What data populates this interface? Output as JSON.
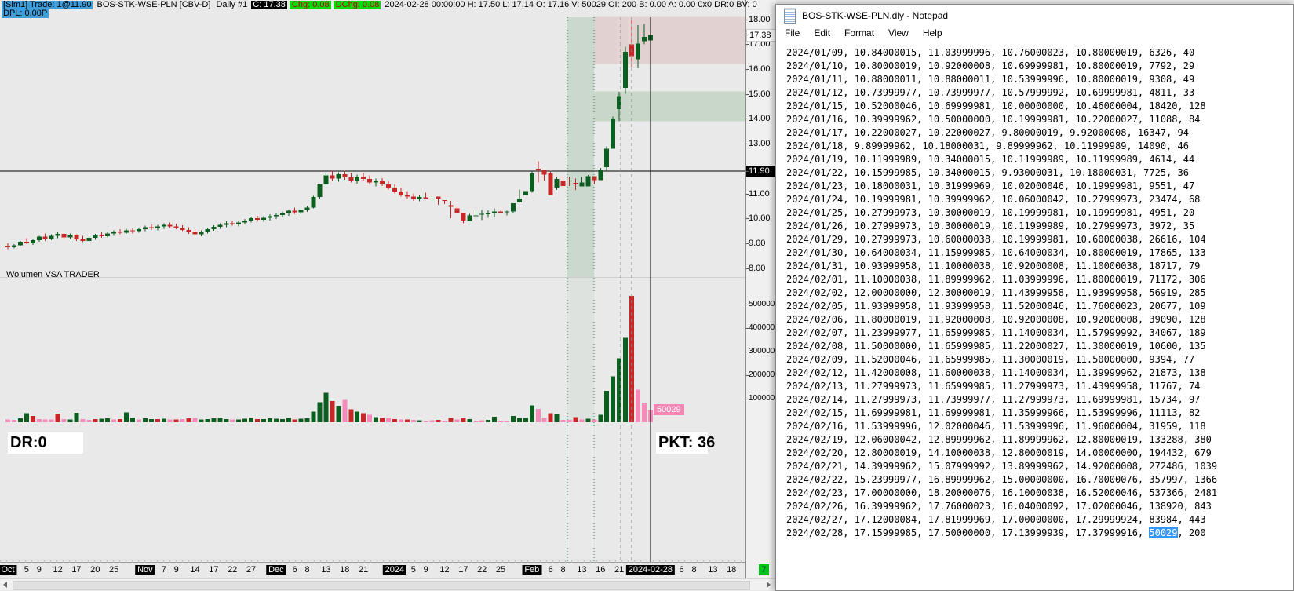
{
  "chart_window": {
    "header": {
      "sim_trade": "[Sim1]  Trade: 1@11.90",
      "symbol": "BOS-STK-WSE-PLN [CBV-D]",
      "period": "Daily #1",
      "close": "C: 17.38",
      "chg": "Chg: 0.08",
      "dchg": "DChg: 0.08",
      "info": "2024-02-28 00:00:00 H: 17.50 L: 17.14 O: 17.16 V: 50029 OI: 200 B: 0.00 A: 0.00 0x0 DR:0 BV: 0",
      "dpl": "DPL: 0.00P"
    },
    "study_label": "Wolumen VSA TRADER",
    "dr_label": "DR:0",
    "pkt_label": "PKT: 36",
    "volume_tag": "50029",
    "update_indicator": "7"
  },
  "notepad": {
    "title": "BOS-STK-WSE-PLN.dly - Notepad",
    "menu": [
      "File",
      "Edit",
      "Format",
      "View",
      "Help"
    ],
    "selection": {
      "line_index": 36,
      "text": "50029"
    },
    "lines": [
      "2024/01/09, 10.84000015, 11.03999996, 10.76000023, 10.80000019, 6326, 40",
      "2024/01/10, 10.80000019, 10.92000008, 10.69999981, 10.80000019, 7792, 29",
      "2024/01/11, 10.88000011, 10.88000011, 10.53999996, 10.80000019, 9308, 49",
      "2024/01/12, 10.73999977, 10.73999977, 10.57999992, 10.69999981, 4811, 33",
      "2024/01/15, 10.52000046, 10.69999981, 10.00000000, 10.46000004, 18420, 128",
      "2024/01/16, 10.39999962, 10.50000000, 10.19999981, 10.22000027, 11088, 84",
      "2024/01/17, 10.22000027, 10.22000027, 9.80000019, 9.92000008, 16347, 94",
      "2024/01/18, 9.89999962, 10.18000031, 9.89999962, 10.11999989, 14090, 46",
      "2024/01/19, 10.11999989, 10.34000015, 10.11999989, 10.11999989, 4614, 44",
      "2024/01/22, 10.15999985, 10.34000015, 9.93000031, 10.18000031, 7725, 36",
      "2024/01/23, 10.18000031, 10.31999969, 10.02000046, 10.19999981, 9551, 47",
      "2024/01/24, 10.19999981, 10.39999962, 10.06000042, 10.27999973, 23474, 68",
      "2024/01/25, 10.27999973, 10.30000019, 10.19999981, 10.19999981, 4951, 20",
      "2024/01/26, 10.27999973, 10.30000019, 10.11999989, 10.27999973, 3972, 35",
      "2024/01/29, 10.27999973, 10.60000038, 10.19999981, 10.60000038, 26616, 104",
      "2024/01/30, 10.64000034, 11.15999985, 10.64000034, 10.80000019, 17865, 133",
      "2024/01/31, 10.93999958, 11.10000038, 10.92000008, 11.10000038, 18717, 79",
      "2024/02/01, 11.10000038, 11.89999962, 11.03999996, 11.80000019, 71172, 306",
      "2024/02/02, 12.00000000, 12.30000019, 11.43999958, 11.93999958, 56919, 285",
      "2024/02/05, 11.93999958, 11.93999958, 11.52000046, 11.76000023, 20677, 109",
      "2024/02/06, 11.80000019, 11.92000008, 10.92000008, 10.92000008, 39090, 128",
      "2024/02/07, 11.23999977, 11.65999985, 11.14000034, 11.57999992, 34067, 189",
      "2024/02/08, 11.50000000, 11.65999985, 11.22000027, 11.30000019, 10600, 135",
      "2024/02/09, 11.52000046, 11.65999985, 11.30000019, 11.50000000, 9394, 77",
      "2024/02/12, 11.42000008, 11.60000038, 11.14000034, 11.39999962, 21873, 138",
      "2024/02/13, 11.27999973, 11.65999985, 11.27999973, 11.43999958, 11767, 74",
      "2024/02/14, 11.27999973, 11.73999977, 11.27999973, 11.69999981, 15734, 97",
      "2024/02/15, 11.69999981, 11.69999981, 11.35999966, 11.53999996, 11113, 82",
      "2024/02/16, 11.53999996, 12.02000046, 11.53999996, 11.96000004, 31959, 118",
      "2024/02/19, 12.06000042, 12.89999962, 11.89999962, 12.80000019, 133288, 380",
      "2024/02/20, 12.80000019, 14.10000038, 12.80000019, 14.00000000, 194432, 679",
      "2024/02/21, 14.39999962, 15.07999992, 13.89999962, 14.92000008, 272486, 1039",
      "2024/02/22, 15.23999977, 16.89999962, 15.00000000, 16.70000076, 357997, 1366",
      "2024/02/23, 17.00000000, 18.20000076, 16.10000038, 16.52000046, 537366, 2481",
      "2024/02/26, 16.39999962, 17.76000023, 16.04000092, 17.02000046, 138920, 843",
      "2024/02/27, 17.12000084, 17.81999969, 17.00000000, 17.29999924, 83984, 443",
      "2024/02/28, 17.15999985, 17.50000000, 17.13999939, 17.37999916, 50029, 200"
    ]
  },
  "chart_data": {
    "type": "candlestick+volume",
    "title": "BOS-STK-WSE-PLN [CBV-D] Daily",
    "last_price": "17.38",
    "entry_price": "11.90",
    "price_ticks": [
      18,
      17,
      16,
      15,
      14,
      13,
      11,
      10,
      9,
      8
    ],
    "volume_ticks": [
      500000,
      400000,
      300000,
      200000,
      100000
    ],
    "colors": {
      "up": "#0B5E20",
      "down": "#C62828",
      "vol_pink": "#F48BB8",
      "band": "rgba(34,119,51,0.15)",
      "band_low": "rgba(34,119,51,0.06)",
      "zone_red": "rgba(192,87,87,0.16)",
      "zone_green": "rgba(85,150,85,0.22)"
    },
    "overlays": {
      "band": {
        "x1": 723,
        "x2": 757
      },
      "zones": [
        {
          "x1": 757,
          "p_top": 18.1,
          "p_bottom": 16.2,
          "color": "rgba(192,87,87,0.16)"
        },
        {
          "x1": 757,
          "p_top": 15.1,
          "p_bottom": 13.9,
          "color": "rgba(85,150,85,0.22)"
        }
      ],
      "vlines": [
        {
          "x": 723,
          "kind": "dg"
        },
        {
          "x": 757,
          "kind": "dg"
        },
        {
          "x": 791,
          "kind": "dash"
        },
        {
          "x": 805,
          "kind": "dash"
        },
        {
          "x": 829,
          "kind": "solid"
        }
      ]
    },
    "x_ticks": [
      {
        "t": "Oct",
        "i": 0,
        "em": 1
      },
      {
        "t": "5",
        "i": 3
      },
      {
        "t": "9",
        "i": 5
      },
      {
        "t": "12",
        "i": 8
      },
      {
        "t": "17",
        "i": 11
      },
      {
        "t": "20",
        "i": 14
      },
      {
        "t": "25",
        "i": 17
      },
      {
        "t": "Nov",
        "i": 22,
        "em": 1
      },
      {
        "t": "7",
        "i": 25
      },
      {
        "t": "9",
        "i": 27
      },
      {
        "t": "14",
        "i": 30
      },
      {
        "t": "17",
        "i": 33
      },
      {
        "t": "22",
        "i": 36
      },
      {
        "t": "27",
        "i": 39
      },
      {
        "t": "Dec",
        "i": 43,
        "em": 1
      },
      {
        "t": "6",
        "i": 46
      },
      {
        "t": "8",
        "i": 48
      },
      {
        "t": "13",
        "i": 51
      },
      {
        "t": "18",
        "i": 54
      },
      {
        "t": "21",
        "i": 57
      },
      {
        "t": "2024",
        "i": 62,
        "em": 1
      },
      {
        "t": "5",
        "i": 65
      },
      {
        "t": "9",
        "i": 67
      },
      {
        "t": "12",
        "i": 70
      },
      {
        "t": "17",
        "i": 73
      },
      {
        "t": "22",
        "i": 76
      },
      {
        "t": "25",
        "i": 79
      },
      {
        "t": "Feb",
        "i": 84,
        "em": 1
      },
      {
        "t": "6",
        "i": 87
      },
      {
        "t": "8",
        "i": 89
      },
      {
        "t": "13",
        "i": 92
      },
      {
        "t": "16",
        "i": 95
      },
      {
        "t": "21",
        "i": 98
      },
      {
        "t": "2024-02-28",
        "i": 103,
        "em": 1
      },
      {
        "t": "6",
        "i": 108
      },
      {
        "t": "8",
        "i": 110
      },
      {
        "t": "13",
        "i": 113
      },
      {
        "t": "18",
        "i": 116
      }
    ],
    "bars": [
      [
        "10/02",
        8.9,
        9.0,
        8.76,
        8.84,
        12000,
        "p"
      ],
      [
        "10/03",
        8.84,
        8.96,
        8.8,
        8.92,
        10000,
        "p"
      ],
      [
        "10/04",
        8.92,
        9.1,
        8.88,
        9.06,
        16000,
        "g"
      ],
      [
        "10/05",
        9.06,
        9.2,
        8.96,
        9.0,
        38000,
        "g"
      ],
      [
        "10/06",
        9.0,
        9.16,
        8.94,
        9.12,
        26000,
        "r"
      ],
      [
        "10/09",
        9.12,
        9.3,
        9.06,
        9.26,
        14000,
        "p"
      ],
      [
        "10/10",
        9.26,
        9.4,
        9.1,
        9.18,
        12000,
        "p"
      ],
      [
        "10/11",
        9.18,
        9.36,
        9.12,
        9.3,
        11000,
        "p"
      ],
      [
        "10/12",
        9.3,
        9.44,
        9.2,
        9.38,
        36000,
        "r"
      ],
      [
        "10/13",
        9.38,
        9.42,
        9.18,
        9.24,
        13000,
        "p"
      ],
      [
        "10/16",
        9.24,
        9.4,
        9.16,
        9.34,
        12000,
        "g"
      ],
      [
        "10/17",
        9.34,
        9.36,
        9.1,
        9.16,
        40000,
        "g"
      ],
      [
        "10/18",
        9.16,
        9.3,
        9.04,
        9.1,
        14000,
        "p"
      ],
      [
        "10/19",
        9.1,
        9.28,
        9.06,
        9.22,
        10000,
        "p"
      ],
      [
        "10/20",
        9.22,
        9.38,
        9.14,
        9.32,
        13000,
        "r"
      ],
      [
        "10/23",
        9.32,
        9.44,
        9.22,
        9.28,
        15000,
        "g"
      ],
      [
        "10/24",
        9.28,
        9.46,
        9.24,
        9.4,
        17000,
        "g"
      ],
      [
        "10/25",
        9.4,
        9.52,
        9.3,
        9.46,
        11000,
        "p"
      ],
      [
        "10/26",
        9.46,
        9.56,
        9.36,
        9.42,
        13000,
        "r"
      ],
      [
        "10/27",
        9.42,
        9.58,
        9.38,
        9.52,
        42000,
        "g"
      ],
      [
        "10/30",
        9.52,
        9.6,
        9.4,
        9.48,
        20000,
        "g"
      ],
      [
        "10/31",
        9.48,
        9.62,
        9.42,
        9.56,
        12000,
        "p"
      ],
      [
        "11/02",
        9.56,
        9.7,
        9.48,
        9.64,
        16000,
        "g"
      ],
      [
        "11/03",
        9.64,
        9.76,
        9.54,
        9.6,
        14000,
        "g"
      ],
      [
        "11/06",
        9.6,
        9.74,
        9.52,
        9.68,
        13000,
        "r"
      ],
      [
        "11/07",
        9.68,
        9.8,
        9.58,
        9.74,
        15000,
        "g"
      ],
      [
        "11/08",
        9.74,
        9.84,
        9.62,
        9.68,
        11000,
        "p"
      ],
      [
        "11/09",
        9.68,
        9.78,
        9.56,
        9.62,
        12000,
        "r"
      ],
      [
        "11/10",
        9.62,
        9.72,
        9.48,
        9.54,
        14000,
        "p"
      ],
      [
        "11/13",
        9.54,
        9.64,
        9.38,
        9.44,
        16000,
        "r"
      ],
      [
        "11/14",
        9.44,
        9.56,
        9.3,
        9.36,
        18000,
        "p"
      ],
      [
        "11/15",
        9.36,
        9.52,
        9.28,
        9.46,
        12000,
        "g"
      ],
      [
        "11/16",
        9.46,
        9.62,
        9.4,
        9.56,
        14000,
        "g"
      ],
      [
        "11/17",
        9.56,
        9.72,
        9.5,
        9.66,
        16000,
        "g"
      ],
      [
        "11/20",
        9.66,
        9.8,
        9.58,
        9.74,
        18000,
        "g"
      ],
      [
        "11/21",
        9.74,
        9.88,
        9.64,
        9.8,
        13000,
        "g"
      ],
      [
        "11/22",
        9.8,
        9.92,
        9.7,
        9.76,
        11000,
        "p"
      ],
      [
        "11/23",
        9.76,
        9.9,
        9.68,
        9.84,
        12000,
        "g"
      ],
      [
        "11/24",
        9.84,
        9.98,
        9.76,
        9.92,
        15000,
        "g"
      ],
      [
        "11/27",
        9.92,
        10.06,
        9.84,
        10.0,
        20000,
        "g"
      ],
      [
        "11/28",
        10.0,
        10.1,
        9.88,
        9.94,
        13000,
        "r"
      ],
      [
        "11/29",
        9.94,
        10.08,
        9.86,
        10.02,
        14000,
        "g"
      ],
      [
        "11/30",
        10.02,
        10.16,
        9.92,
        10.08,
        16000,
        "g"
      ],
      [
        "12/01",
        10.08,
        10.2,
        9.98,
        10.14,
        15000,
        "g"
      ],
      [
        "12/04",
        10.14,
        10.28,
        10.04,
        10.2,
        14000,
        "g"
      ],
      [
        "12/05",
        10.2,
        10.36,
        10.1,
        10.3,
        18000,
        "g"
      ],
      [
        "12/06",
        10.3,
        10.44,
        10.18,
        10.24,
        12000,
        "r"
      ],
      [
        "12/07",
        10.24,
        10.4,
        10.16,
        10.34,
        15000,
        "g"
      ],
      [
        "12/08",
        10.34,
        10.5,
        10.26,
        10.44,
        17000,
        "g"
      ],
      [
        "12/11",
        10.44,
        10.9,
        10.4,
        10.86,
        45000,
        "g"
      ],
      [
        "12/12",
        10.86,
        11.4,
        10.8,
        11.36,
        85000,
        "g"
      ],
      [
        "12/13",
        11.36,
        11.8,
        11.3,
        11.72,
        125000,
        "g"
      ],
      [
        "12/14",
        11.72,
        11.9,
        11.5,
        11.6,
        90000,
        "r"
      ],
      [
        "12/15",
        11.6,
        11.86,
        11.48,
        11.78,
        70000,
        "g"
      ],
      [
        "12/18",
        11.78,
        11.92,
        11.56,
        11.64,
        95000,
        "p"
      ],
      [
        "12/19",
        11.64,
        11.82,
        11.44,
        11.52,
        55000,
        "r"
      ],
      [
        "12/20",
        11.52,
        11.76,
        11.4,
        11.68,
        45000,
        "g"
      ],
      [
        "12/21",
        11.68,
        11.84,
        11.52,
        11.58,
        38000,
        "r"
      ],
      [
        "12/22",
        11.58,
        11.72,
        11.36,
        11.44,
        32000,
        "p"
      ],
      [
        "12/27",
        11.44,
        11.6,
        11.28,
        11.5,
        22000,
        "g"
      ],
      [
        "12/28",
        11.5,
        11.62,
        11.3,
        11.36,
        18000,
        "r"
      ],
      [
        "12/29",
        11.36,
        11.5,
        11.16,
        11.24,
        16000,
        "p"
      ],
      [
        "01/02",
        11.24,
        11.36,
        11.0,
        11.08,
        14000,
        "r"
      ],
      [
        "01/03",
        11.08,
        11.2,
        10.88,
        10.96,
        12000,
        "p"
      ],
      [
        "01/04",
        10.96,
        11.1,
        10.8,
        10.88,
        11000,
        "r"
      ],
      [
        "01/05",
        10.88,
        11.0,
        10.7,
        10.78,
        10000,
        "p"
      ],
      [
        "01/08",
        10.78,
        10.94,
        10.68,
        10.86,
        9000,
        "g"
      ],
      [
        "01/09",
        10.84,
        11.04,
        10.76,
        10.8,
        6326,
        "p"
      ],
      [
        "01/10",
        10.8,
        10.92,
        10.7,
        10.8,
        7792,
        "p"
      ],
      [
        "01/11",
        10.88,
        10.88,
        10.54,
        10.8,
        9308,
        "r"
      ],
      [
        "01/12",
        10.74,
        10.74,
        10.58,
        10.7,
        4811,
        "p"
      ],
      [
        "01/15",
        10.52,
        10.7,
        10.0,
        10.46,
        18420,
        "r"
      ],
      [
        "01/16",
        10.4,
        10.5,
        10.2,
        10.22,
        11088,
        "p"
      ],
      [
        "01/17",
        10.22,
        10.22,
        9.8,
        9.92,
        16347,
        "r"
      ],
      [
        "01/18",
        9.9,
        10.18,
        9.9,
        10.12,
        14090,
        "g"
      ],
      [
        "01/19",
        10.12,
        10.34,
        10.12,
        10.12,
        4614,
        "p"
      ],
      [
        "01/22",
        10.16,
        10.34,
        9.93,
        10.18,
        7725,
        "p"
      ],
      [
        "01/23",
        10.18,
        10.32,
        10.02,
        10.2,
        9551,
        "g"
      ],
      [
        "01/24",
        10.2,
        10.4,
        10.06,
        10.28,
        23474,
        "g"
      ],
      [
        "01/25",
        10.28,
        10.3,
        10.2,
        10.2,
        4951,
        "p"
      ],
      [
        "01/26",
        10.28,
        10.3,
        10.12,
        10.28,
        3972,
        "p"
      ],
      [
        "01/29",
        10.28,
        10.6,
        10.2,
        10.6,
        26616,
        "g"
      ],
      [
        "01/30",
        10.64,
        11.16,
        10.64,
        10.8,
        17865,
        "g"
      ],
      [
        "01/31",
        10.94,
        11.1,
        10.92,
        11.1,
        18717,
        "g"
      ],
      [
        "02/01",
        11.1,
        11.9,
        11.04,
        11.8,
        71172,
        "g"
      ],
      [
        "02/02",
        12.0,
        12.3,
        11.44,
        11.94,
        56919,
        "p"
      ],
      [
        "02/05",
        11.94,
        11.94,
        11.52,
        11.76,
        20677,
        "p"
      ],
      [
        "02/06",
        11.8,
        11.92,
        10.92,
        10.92,
        39090,
        "r"
      ],
      [
        "02/07",
        11.24,
        11.66,
        11.14,
        11.58,
        34067,
        "g"
      ],
      [
        "02/08",
        11.5,
        11.66,
        11.22,
        11.3,
        10600,
        "p"
      ],
      [
        "02/09",
        11.52,
        11.66,
        11.3,
        11.5,
        9394,
        "p"
      ],
      [
        "02/12",
        11.42,
        11.6,
        11.14,
        11.4,
        21873,
        "r"
      ],
      [
        "02/13",
        11.28,
        11.66,
        11.28,
        11.44,
        11767,
        "p"
      ],
      [
        "02/14",
        11.28,
        11.74,
        11.28,
        11.7,
        15734,
        "g"
      ],
      [
        "02/15",
        11.7,
        11.7,
        11.36,
        11.54,
        11113,
        "p"
      ],
      [
        "02/16",
        11.54,
        12.02,
        11.54,
        11.96,
        31959,
        "g"
      ],
      [
        "02/19",
        12.06,
        12.9,
        11.9,
        12.8,
        133288,
        "g"
      ],
      [
        "02/20",
        12.8,
        14.1,
        12.8,
        14.0,
        194432,
        "g"
      ],
      [
        "02/21",
        14.4,
        15.08,
        13.9,
        14.92,
        272486,
        "g"
      ],
      [
        "02/22",
        15.24,
        16.9,
        15.0,
        16.7,
        357997,
        "g"
      ],
      [
        "02/23",
        17.0,
        18.2,
        16.1,
        16.52,
        537366,
        "r"
      ],
      [
        "02/26",
        16.4,
        17.76,
        16.04,
        17.02,
        138920,
        "p"
      ],
      [
        "02/27",
        17.12,
        17.82,
        17.0,
        17.3,
        83984,
        "p"
      ],
      [
        "02/28",
        17.16,
        17.5,
        17.14,
        17.38,
        50029,
        "p"
      ]
    ]
  }
}
